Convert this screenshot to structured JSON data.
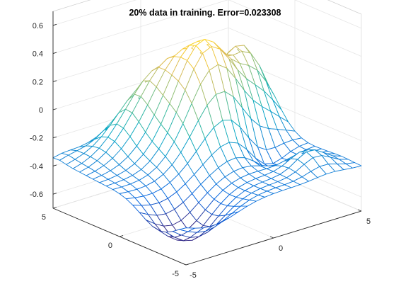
{
  "chart_data": {
    "type": "surface-mesh",
    "title": "20% data in training. Error=0.023308",
    "xlabel": "",
    "ylabel": "",
    "zlabel": "",
    "xlim": [
      -5,
      5
    ],
    "ylim": [
      -5,
      5
    ],
    "zlim": [
      -0.7,
      0.7
    ],
    "x_ticks": [
      {
        "value": -5,
        "label": "-5"
      },
      {
        "value": 0,
        "label": "0"
      },
      {
        "value": 5,
        "label": "5"
      }
    ],
    "y_ticks": [
      {
        "value": -5,
        "label": "-5"
      },
      {
        "value": 0,
        "label": "0"
      },
      {
        "value": 5,
        "label": "5"
      }
    ],
    "z_ticks": [
      {
        "value": -0.6,
        "label": "-0.6"
      },
      {
        "value": -0.4,
        "label": "-0.4"
      },
      {
        "value": -0.2,
        "label": "-0.2"
      },
      {
        "value": 0,
        "label": "0"
      },
      {
        "value": 0.2,
        "label": "0.2"
      },
      {
        "value": 0.4,
        "label": "0.4"
      },
      {
        "value": 0.6,
        "label": "0.6"
      }
    ],
    "grid": true,
    "colormap": [
      "#352a87",
      "#0363e1",
      "#1485d4",
      "#06a7c6",
      "#38b99e",
      "#92bf73",
      "#d9ba56",
      "#fcce2e",
      "#f9fb0e"
    ],
    "x": [
      -5,
      -4.5,
      -4,
      -3.5,
      -3,
      -2.5,
      -2,
      -1.5,
      -1,
      -0.5,
      0,
      0.5,
      1,
      1.5,
      2,
      2.5,
      3,
      3.5,
      4,
      4.5,
      5
    ],
    "y": [
      -5,
      -4.5,
      -4,
      -3.5,
      -3,
      -2.5,
      -2,
      -1.5,
      -1,
      -0.5,
      0,
      0.5,
      1,
      1.5,
      2,
      2.5,
      3,
      3.5,
      4,
      4.5,
      5
    ],
    "surface_components": {
      "base": -0.38,
      "bumps": [
        {
          "x0": 1.0,
          "y0": 1.2,
          "amp": 0.75,
          "sx": 1.6,
          "sy": 1.4
        },
        {
          "x0": -0.5,
          "y0": 3.5,
          "amp": 0.42,
          "sx": 1.8,
          "sy": 1.1
        },
        {
          "x0": 4.0,
          "y0": 2.6,
          "amp": 0.5,
          "sx": 1.0,
          "sy": 1.2
        },
        {
          "x0": -3.5,
          "y0": -3.0,
          "amp": -0.28,
          "sx": 1.4,
          "sy": 1.4
        },
        {
          "x0": 2.5,
          "y0": -0.8,
          "amp": -0.2,
          "sx": 1.0,
          "sy": 0.8
        },
        {
          "x0": 3.2,
          "y0": -3.5,
          "amp": 0.12,
          "sx": 0.8,
          "sy": 0.8
        },
        {
          "x0": -4.5,
          "y0": 4.8,
          "amp": 0.04,
          "sx": 0.8,
          "sy": 0.6
        }
      ]
    }
  }
}
